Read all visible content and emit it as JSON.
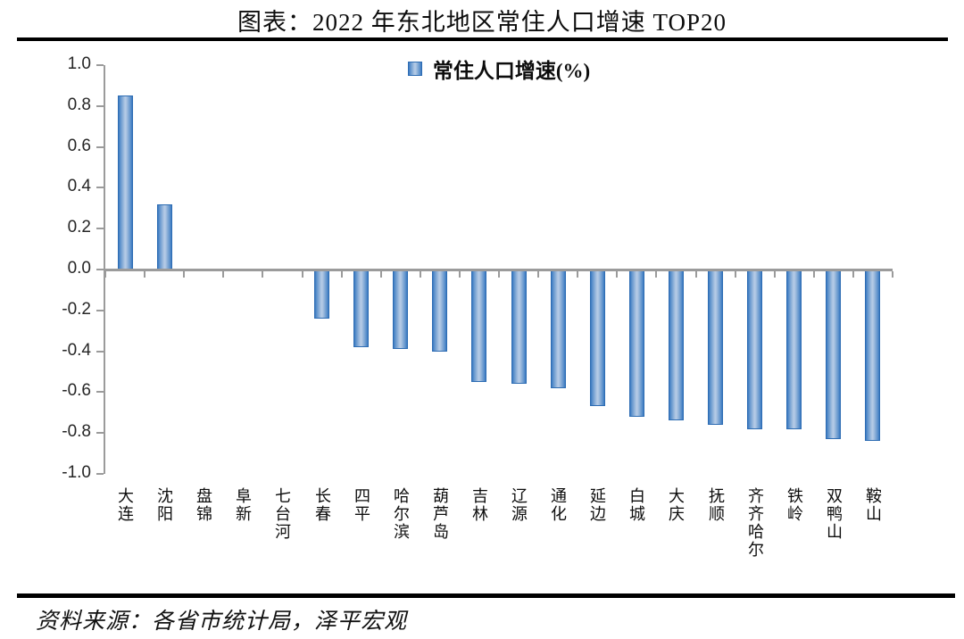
{
  "title": "图表：2022 年东北地区常住人口增速 TOP20",
  "source": "资料来源：各省市统计局，泽平宏观",
  "chart_data": {
    "type": "bar",
    "title": "图表：2022 年东北地区常住人口增速 TOP20",
    "legend_label": "常住人口增速(%)",
    "legend_position": "top-center",
    "categories": [
      "大连",
      "沈阳",
      "盘锦",
      "阜新",
      "七台河",
      "长春",
      "四平",
      "哈尔滨",
      "葫芦岛",
      "吉林",
      "辽源",
      "通化",
      "延边",
      "白城",
      "大庆",
      "抚顺",
      "齐齐哈尔",
      "铁岭",
      "双鸭山",
      "鞍山"
    ],
    "values": [
      0.85,
      0.32,
      0.0,
      0.0,
      0.0,
      -0.24,
      -0.38,
      -0.39,
      -0.4,
      -0.55,
      -0.56,
      -0.58,
      -0.67,
      -0.72,
      -0.74,
      -0.76,
      -0.78,
      -0.78,
      -0.83,
      -0.84
    ],
    "xlabel": "",
    "ylabel": "",
    "ylim": [
      -1.0,
      1.0
    ],
    "yticks": [
      1.0,
      0.8,
      0.6,
      0.4,
      0.2,
      0.0,
      -0.2,
      -0.4,
      -0.6,
      -0.8,
      -1.0
    ],
    "grid": false,
    "colors": {
      "bar_edge": "#3a79c1",
      "bar_center": "#b6cce7",
      "bar_border": "#2d6cb3",
      "axis": "#9b9b9b",
      "text": "#0d0d0d"
    },
    "source_note": "资料来源：各省市统计局，泽平宏观"
  }
}
